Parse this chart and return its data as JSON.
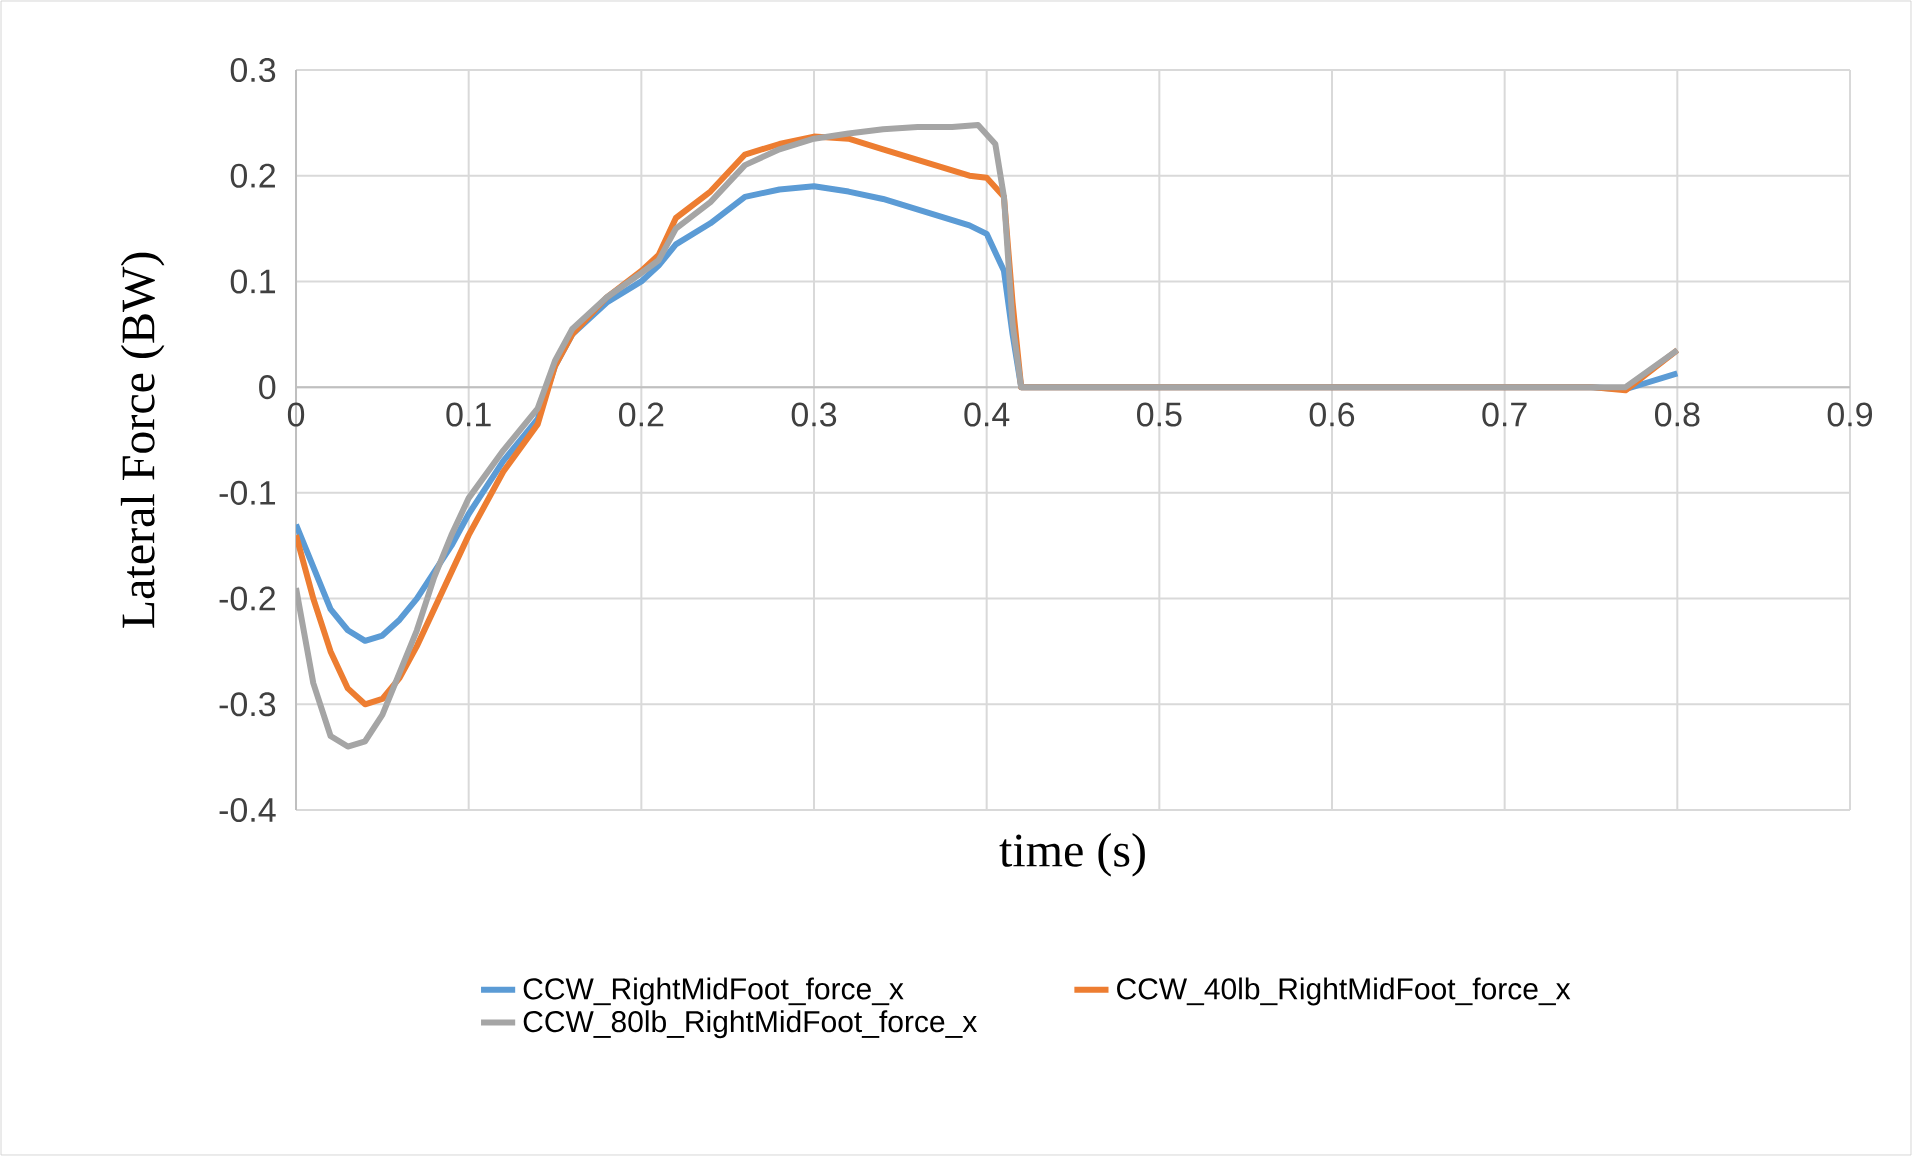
{
  "chart_data": {
    "type": "line",
    "xlabel": "time (s)",
    "ylabel": "Lateral Force (BW)",
    "xlim": [
      0,
      0.9
    ],
    "ylim": [
      -0.4,
      0.3
    ],
    "xticks": [
      0,
      0.1,
      0.2,
      0.3,
      0.4,
      0.5,
      0.6,
      0.7,
      0.8,
      0.9
    ],
    "yticks": [
      -0.4,
      -0.3,
      -0.2,
      -0.1,
      0,
      0.1,
      0.2,
      0.3
    ],
    "grid": true,
    "legend": "bottom",
    "marker": "none",
    "line_style": "solid",
    "series": [
      {
        "name": "CCW_RightMidFoot_force_x",
        "color": "#5b9bd5",
        "x": [
          0,
          0.01,
          0.02,
          0.03,
          0.04,
          0.05,
          0.06,
          0.07,
          0.08,
          0.09,
          0.1,
          0.12,
          0.14,
          0.15,
          0.16,
          0.18,
          0.2,
          0.21,
          0.22,
          0.24,
          0.26,
          0.28,
          0.3,
          0.32,
          0.34,
          0.36,
          0.38,
          0.39,
          0.4,
          0.41,
          0.415,
          0.42,
          0.43,
          0.5,
          0.6,
          0.7,
          0.75,
          0.77,
          0.8
        ],
        "values": [
          -0.13,
          -0.17,
          -0.21,
          -0.23,
          -0.24,
          -0.235,
          -0.22,
          -0.2,
          -0.175,
          -0.15,
          -0.12,
          -0.07,
          -0.03,
          0.02,
          0.05,
          0.08,
          0.1,
          0.115,
          0.135,
          0.155,
          0.18,
          0.187,
          0.19,
          0.185,
          0.178,
          0.168,
          0.158,
          0.153,
          0.145,
          0.11,
          0.05,
          0,
          0,
          0,
          0,
          0,
          0,
          -0.002,
          0.013
        ]
      },
      {
        "name": "CCW_40lb_RightMidFoot_force_x",
        "color": "#ed7d31",
        "x": [
          0,
          0.01,
          0.02,
          0.03,
          0.04,
          0.05,
          0.06,
          0.07,
          0.08,
          0.09,
          0.1,
          0.12,
          0.14,
          0.15,
          0.16,
          0.18,
          0.2,
          0.21,
          0.22,
          0.24,
          0.26,
          0.28,
          0.3,
          0.32,
          0.34,
          0.36,
          0.38,
          0.39,
          0.4,
          0.41,
          0.415,
          0.42,
          0.43,
          0.5,
          0.6,
          0.7,
          0.75,
          0.77,
          0.8
        ],
        "values": [
          -0.14,
          -0.2,
          -0.25,
          -0.285,
          -0.3,
          -0.295,
          -0.275,
          -0.245,
          -0.21,
          -0.175,
          -0.14,
          -0.08,
          -0.035,
          0.02,
          0.05,
          0.085,
          0.11,
          0.125,
          0.16,
          0.185,
          0.22,
          0.23,
          0.237,
          0.235,
          0.225,
          0.215,
          0.205,
          0.2,
          0.198,
          0.18,
          0.08,
          0,
          0,
          0,
          0,
          0,
          0,
          -0.003,
          0.035
        ]
      },
      {
        "name": "CCW_80lb_RightMidFoot_force_x",
        "color": "#a5a5a5",
        "x": [
          0,
          0.01,
          0.02,
          0.03,
          0.04,
          0.05,
          0.06,
          0.07,
          0.08,
          0.09,
          0.1,
          0.12,
          0.14,
          0.15,
          0.16,
          0.18,
          0.2,
          0.21,
          0.22,
          0.24,
          0.26,
          0.28,
          0.3,
          0.32,
          0.34,
          0.36,
          0.38,
          0.395,
          0.405,
          0.41,
          0.415,
          0.42,
          0.43,
          0.5,
          0.6,
          0.7,
          0.75,
          0.77,
          0.8
        ],
        "values": [
          -0.19,
          -0.28,
          -0.33,
          -0.34,
          -0.335,
          -0.31,
          -0.27,
          -0.23,
          -0.18,
          -0.14,
          -0.105,
          -0.06,
          -0.02,
          0.025,
          0.055,
          0.085,
          0.108,
          0.12,
          0.15,
          0.175,
          0.21,
          0.225,
          0.235,
          0.24,
          0.244,
          0.246,
          0.246,
          0.248,
          0.23,
          0.18,
          0.06,
          0,
          0,
          0,
          0,
          0,
          0,
          0,
          0.035
        ]
      }
    ]
  }
}
